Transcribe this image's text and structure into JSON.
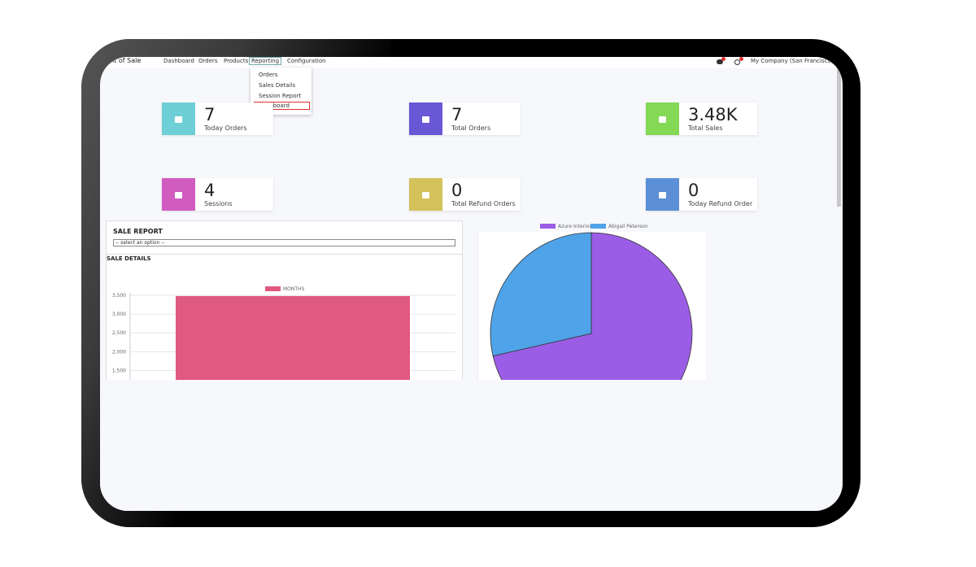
{
  "nav": {
    "app": "oint of Sale",
    "menu": [
      "Dashboard",
      "Orders",
      "Products",
      "Reporting",
      "Configuration"
    ],
    "company": "My Company (San Francisco)"
  },
  "dropdown": [
    "Orders",
    "Sales Details",
    "Session Report",
    "Dashboard"
  ],
  "cards": [
    {
      "value": "7",
      "label": "Today Orders",
      "color": "#6fcfd6"
    },
    {
      "value": "7",
      "label": "Total Orders",
      "color": "#6a57d6"
    },
    {
      "value": "3.48K",
      "label": "Total Sales",
      "color": "#83d856"
    },
    {
      "value": "4",
      "label": "Sessions",
      "color": "#d05cc0"
    },
    {
      "value": "0",
      "label": "Total Refund Orders",
      "color": "#d4c25a"
    },
    {
      "value": "0",
      "label": "Today Refund Order",
      "color": "#5b8fd6"
    }
  ],
  "sale_report": {
    "title": "SALE REPORT",
    "select": "-- select an option --",
    "details": "SALE DETAILS"
  },
  "chart_data": [
    {
      "type": "bar",
      "categories": [
        null
      ],
      "series": [
        {
          "name": "MONTHS",
          "color": "#e05a80",
          "values": [
            3480
          ]
        }
      ],
      "ylim": [
        1250,
        3500
      ],
      "yticks": [
        {
          "value": 1500,
          "label": "1,500"
        },
        {
          "value": 2000,
          "label": "2,000"
        },
        {
          "value": 2500,
          "label": "2,500"
        },
        {
          "value": 3000,
          "label": "3,000"
        },
        {
          "value": 3500,
          "label": "3,500"
        }
      ],
      "grid": true
    },
    {
      "type": "pie",
      "categories": [
        "Azure Interior",
        "Abigail Peterson"
      ],
      "colors": [
        "#9b5de5",
        "#4fa3e8"
      ],
      "values": [
        5,
        2
      ]
    }
  ]
}
